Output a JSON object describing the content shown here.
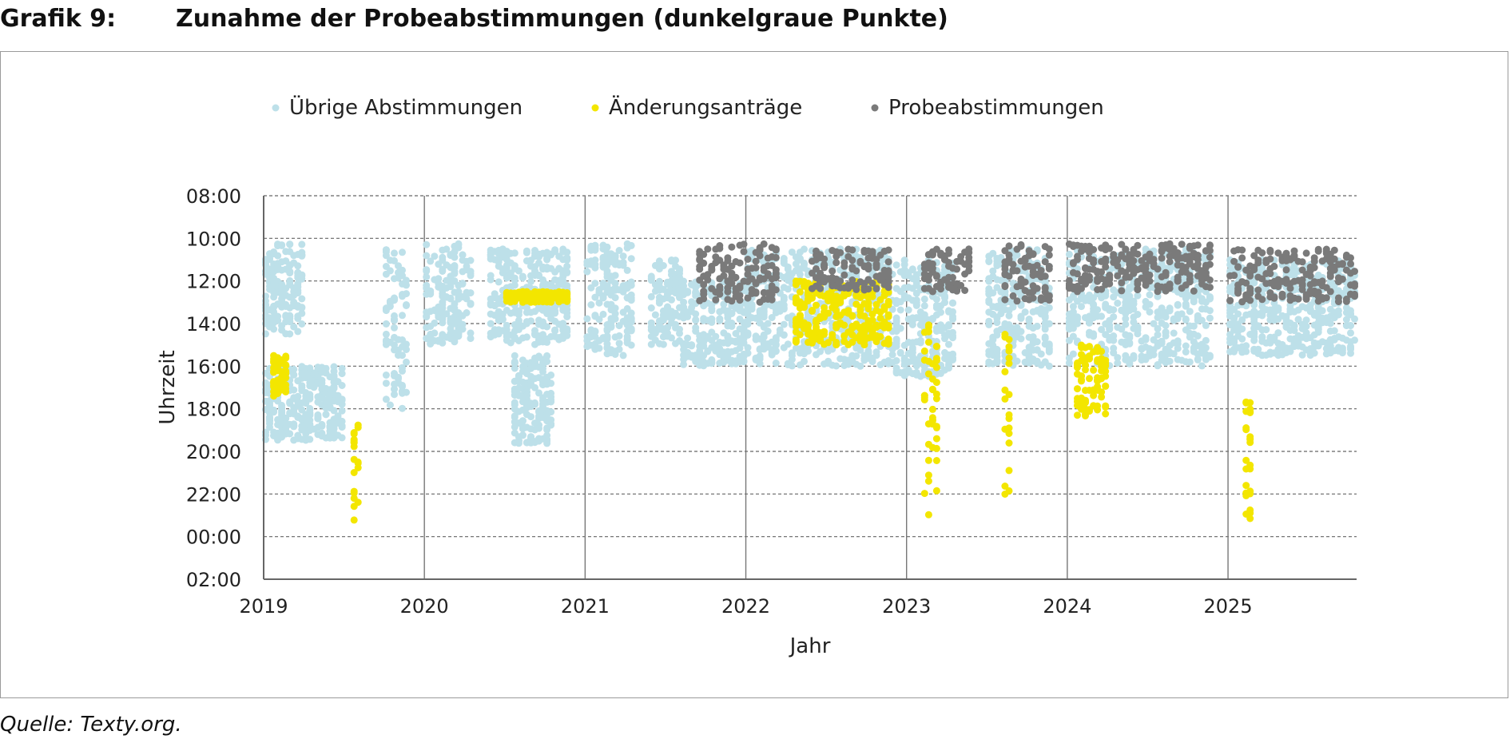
{
  "header": {
    "label": "Grafik 9:",
    "title": "Zunahme der Probeabstimmungen (dunkelgraue Punkte)"
  },
  "source": "Quelle: Texty.org.",
  "colors": {
    "ubrige": "#bde0e9",
    "aenderung": "#f3e600",
    "probe": "#7a7a7a"
  },
  "chart_data": {
    "type": "scatter",
    "xlabel": "Jahr",
    "ylabel": "Uhrzeit",
    "x_ticks": [
      "2019",
      "2020",
      "2021",
      "2022",
      "2023",
      "2024",
      "2025"
    ],
    "y_ticks": [
      "08:00",
      "10:00",
      "12:00",
      "14:00",
      "16:00",
      "18:00",
      "20:00",
      "22:00",
      "00:00",
      "02:00"
    ],
    "xlim": [
      2019,
      2025.8
    ],
    "ylim_hours_after_08": [
      0,
      18
    ],
    "y_reversed": true,
    "grid": "horizontal dashed, vertical solid at years",
    "legend_position": "top",
    "series": [
      {
        "name": "Übrige Abstimmungen",
        "clusters": [
          {
            "x": [
              2019.0,
              2019.25
            ],
            "y": [
              "10:15",
              "14:30"
            ]
          },
          {
            "x": [
              2019.0,
              2019.5
            ],
            "y": [
              "16:00",
              "19:30"
            ]
          },
          {
            "x": [
              2019.75,
              2019.9
            ],
            "y": [
              "10:30",
              "18:00"
            ]
          },
          {
            "x": [
              2020.0,
              2020.3
            ],
            "y": [
              "10:15",
              "15:00"
            ]
          },
          {
            "x": [
              2020.4,
              2020.9
            ],
            "y": [
              "10:30",
              "15:00"
            ]
          },
          {
            "x": [
              2020.55,
              2020.8
            ],
            "y": [
              "15:30",
              "19:45"
            ]
          },
          {
            "x": [
              2021.0,
              2021.3
            ],
            "y": [
              "10:15",
              "15:30"
            ]
          },
          {
            "x": [
              2021.4,
              2021.6
            ],
            "y": [
              "11:00",
              "15:00"
            ]
          },
          {
            "x": [
              2021.6,
              2022.0
            ],
            "y": [
              "12:00",
              "16:00"
            ]
          },
          {
            "x": [
              2022.0,
              2022.9
            ],
            "y": [
              "10:30",
              "16:00"
            ]
          },
          {
            "x": [
              2022.9,
              2023.3
            ],
            "y": [
              "11:00",
              "16:30"
            ]
          },
          {
            "x": [
              2023.5,
              2023.9
            ],
            "y": [
              "10:30",
              "16:00"
            ]
          },
          {
            "x": [
              2024.0,
              2024.9
            ],
            "y": [
              "10:30",
              "16:00"
            ]
          },
          {
            "x": [
              2025.0,
              2025.8
            ],
            "y": [
              "11:00",
              "15:30"
            ]
          }
        ]
      },
      {
        "name": "Änderungsanträge",
        "clusters": [
          {
            "x": [
              2019.05,
              2019.15
            ],
            "y": [
              "15:30",
              "17:30"
            ]
          },
          {
            "x": [
              2019.55,
              2019.6
            ],
            "y": [
              "18:30",
              "23:30"
            ]
          },
          {
            "x": [
              2020.5,
              2020.9
            ],
            "y": [
              "12:30",
              "13:00"
            ]
          },
          {
            "x": [
              2022.3,
              2022.9
            ],
            "y": [
              "12:00",
              "15:00"
            ]
          },
          {
            "x": [
              2023.1,
              2023.2
            ],
            "y": [
              "14:00",
              "23:00"
            ]
          },
          {
            "x": [
              2023.6,
              2023.65
            ],
            "y": [
              "14:30",
              "23:30"
            ]
          },
          {
            "x": [
              2024.05,
              2024.25
            ],
            "y": [
              "15:00",
              "18:30"
            ]
          },
          {
            "x": [
              2025.1,
              2025.15
            ],
            "y": [
              "17:30",
              "23:30"
            ]
          }
        ]
      },
      {
        "name": "Probeabstimmungen",
        "clusters": [
          {
            "x": [
              2021.7,
              2022.2
            ],
            "y": [
              "10:15",
              "13:00"
            ]
          },
          {
            "x": [
              2022.4,
              2022.9
            ],
            "y": [
              "10:30",
              "12:30"
            ]
          },
          {
            "x": [
              2023.1,
              2023.4
            ],
            "y": [
              "10:30",
              "12:30"
            ]
          },
          {
            "x": [
              2023.6,
              2023.9
            ],
            "y": [
              "10:15",
              "13:00"
            ]
          },
          {
            "x": [
              2024.0,
              2024.9
            ],
            "y": [
              "10:15",
              "12:30"
            ]
          },
          {
            "x": [
              2025.0,
              2025.8
            ],
            "y": [
              "10:30",
              "13:00"
            ]
          }
        ]
      }
    ]
  }
}
